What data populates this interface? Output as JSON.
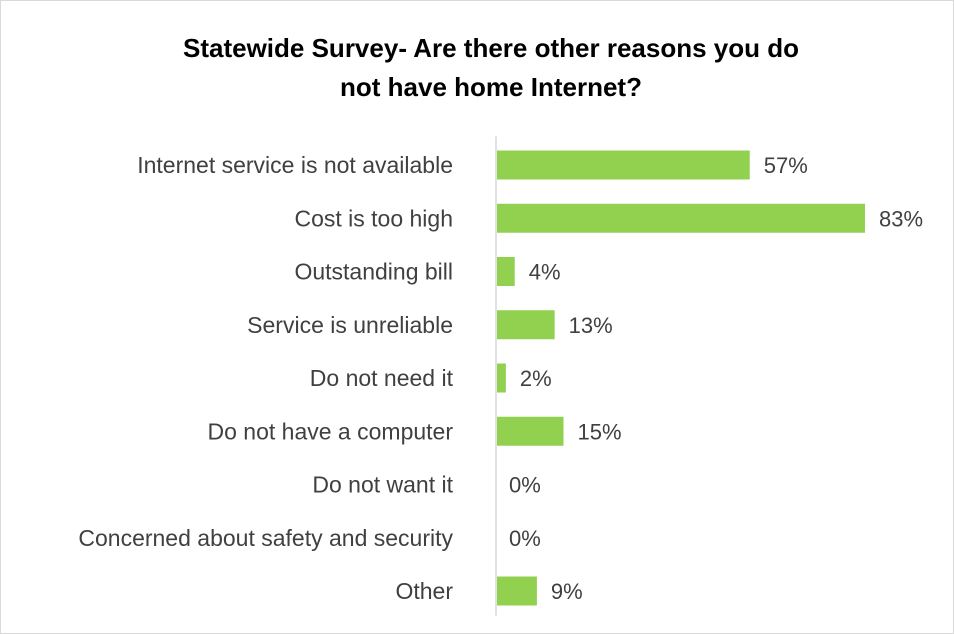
{
  "chart_data": {
    "type": "bar",
    "orientation": "horizontal",
    "title": "Statewide Survey- Are there other reasons you do not have home Internet?",
    "title_lines": [
      "Statewide Survey- Are there other reasons you do",
      "not have home Internet?"
    ],
    "categories": [
      "Internet service is not available",
      "Cost is too high",
      "Outstanding bill",
      "Service is unreliable",
      "Do not need it",
      "Do not have a computer",
      "Do not want it",
      "Concerned about safety and security",
      "Other"
    ],
    "values": [
      57,
      83,
      4,
      13,
      2,
      15,
      0,
      0,
      9
    ],
    "value_labels": [
      "57%",
      "83%",
      "4%",
      "13%",
      "2%",
      "15%",
      "0%",
      "0%",
      "9%"
    ],
    "unit": "%",
    "xlim": [
      0,
      83
    ],
    "grid": false,
    "legend": "none",
    "bar_color": "#92d050"
  }
}
